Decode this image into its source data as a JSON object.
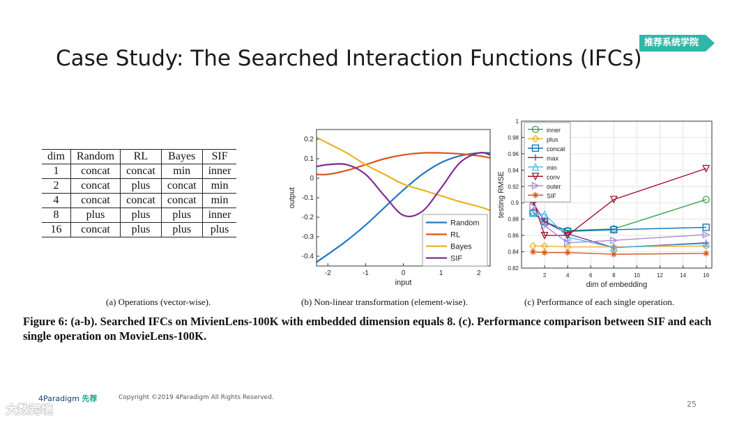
{
  "slide": {
    "title": "Case Study: The Searched Interaction Functions (IFCs)",
    "badge": "推荐系统学院",
    "page_number": "25",
    "copyright": "Copyright ©2019 4Paradigm All Rights Reserved.",
    "logo_text": "4Paradigm",
    "logo_sub": "先荐",
    "watermark": "大数跨境"
  },
  "table": {
    "headers": [
      "dim",
      "Random",
      "RL",
      "Bayes",
      "SIF"
    ],
    "rows": [
      [
        "1",
        "concat",
        "concat",
        "min",
        "inner"
      ],
      [
        "2",
        "concat",
        "plus",
        "concat",
        "min"
      ],
      [
        "4",
        "concat",
        "concat",
        "concat",
        "min"
      ],
      [
        "8",
        "plus",
        "plus",
        "plus",
        "inner"
      ],
      [
        "16",
        "concat",
        "plus",
        "plus",
        "plus"
      ]
    ]
  },
  "captions": {
    "a": "(a) Operations (vector-wise).",
    "b": "(b) Non-linear transformation (element-wise).",
    "c": "(c) Performance of each single operation.",
    "figure": "Figure 6: (a-b). Searched IFCs on MivienLens-100K with embedded dimension equals 8. (c). Performance comparison between SIF and each single operation on MovieLens-100K."
  },
  "chart_data": [
    {
      "type": "line",
      "xlabel": "input",
      "ylabel": "output",
      "xlim": [
        -2.3,
        2.3
      ],
      "ylim": [
        -0.45,
        0.25
      ],
      "xticks": [
        -2,
        -1,
        0,
        1,
        2
      ],
      "yticks": [
        0.2,
        0.1,
        0,
        -0.1,
        -0.2,
        -0.3,
        -0.4
      ],
      "legend_position": "bottom-right",
      "x": [
        -2.3,
        -2.0,
        -1.5,
        -1.0,
        -0.5,
        0.0,
        0.5,
        1.0,
        1.5,
        2.0,
        2.3
      ],
      "series": [
        {
          "name": "Random",
          "color": "#1f77c0",
          "values": [
            -0.43,
            -0.39,
            -0.32,
            -0.24,
            -0.15,
            -0.06,
            0.02,
            0.08,
            0.115,
            0.13,
            0.13
          ]
        },
        {
          "name": "RL",
          "color": "#d9531e",
          "values": [
            0.02,
            0.02,
            0.04,
            0.07,
            0.1,
            0.12,
            0.13,
            0.13,
            0.125,
            0.115,
            0.105
          ]
        },
        {
          "name": "Bayes",
          "color": "#edb120",
          "values": [
            0.21,
            0.18,
            0.13,
            0.07,
            0.02,
            -0.03,
            -0.06,
            -0.09,
            -0.12,
            -0.145,
            -0.165
          ]
        },
        {
          "name": "SIF",
          "color": "#7e2f8e",
          "values": [
            0.06,
            0.07,
            0.07,
            0.02,
            -0.09,
            -0.19,
            -0.17,
            -0.05,
            0.08,
            0.13,
            0.12
          ]
        }
      ]
    },
    {
      "type": "line",
      "xlabel": "dim of embedding",
      "ylabel": "testing RMSE",
      "xlim": [
        0,
        16.5
      ],
      "ylim": [
        0.82,
        1.0
      ],
      "xticks": [
        2,
        4,
        6,
        8,
        10,
        12,
        14,
        16
      ],
      "yticks": [
        1,
        0.98,
        0.96,
        0.94,
        0.92,
        0.9,
        0.88,
        0.86,
        0.84,
        0.82
      ],
      "legend_position": "top-left",
      "x": [
        1,
        2,
        4,
        8,
        16
      ],
      "series": [
        {
          "name": "inner",
          "color": "#3fa34d",
          "marker": "circle",
          "values": [
            0.888,
            0.876,
            0.866,
            0.868,
            0.904
          ]
        },
        {
          "name": "plus",
          "color": "#edb120",
          "marker": "diamond",
          "values": [
            0.847,
            0.847,
            0.846,
            0.846,
            0.847
          ]
        },
        {
          "name": "concat",
          "color": "#0072bd",
          "marker": "square",
          "values": [
            0.887,
            0.877,
            0.865,
            0.867,
            0.87
          ]
        },
        {
          "name": "max",
          "color": "#7e2f8e",
          "marker": "plus",
          "values": [
            0.9,
            0.877,
            0.862,
            0.845,
            0.851
          ]
        },
        {
          "name": "min",
          "color": "#4dbeee",
          "marker": "triangle-up",
          "values": [
            0.887,
            0.886,
            0.858,
            0.845,
            0.85
          ]
        },
        {
          "name": "conv",
          "color": "#a2142f",
          "marker": "triangle-down",
          "values": [
            0.904,
            0.86,
            0.86,
            0.904,
            0.942
          ]
        },
        {
          "name": "outer",
          "color": "#a78bd4",
          "marker": "triangle-right",
          "values": [
            0.895,
            0.872,
            0.851,
            0.854,
            0.861
          ]
        },
        {
          "name": "SIF",
          "color": "#d95319",
          "marker": "asterisk",
          "values": [
            0.84,
            0.839,
            0.839,
            0.837,
            0.838
          ]
        }
      ]
    }
  ]
}
